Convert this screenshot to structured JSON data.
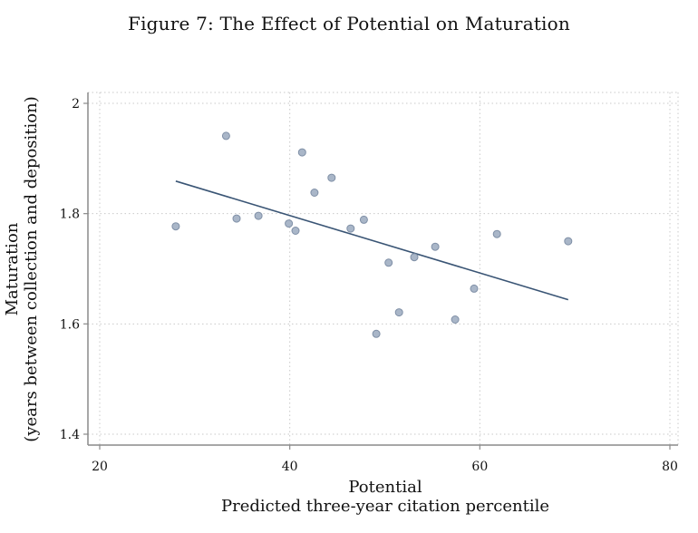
{
  "figure": {
    "title": "Figure 7: The Effect of Potential on Maturation"
  },
  "chart_data": {
    "type": "scatter",
    "title": "Figure 7: The Effect of Potential on Maturation",
    "xlabel": "Potential",
    "xlabel_sub": "Predicted three-year citation percentile",
    "ylabel": "Maturation",
    "ylabel_sub": "(years between collection and deposition)",
    "xlim": [
      20,
      80
    ],
    "ylim": [
      1.4,
      2.0
    ],
    "xticks": [
      20,
      40,
      60,
      80
    ],
    "yticks": [
      1.4,
      1.6,
      1.8,
      2.0
    ],
    "ytick_labels": [
      "1.4",
      "1.6",
      "1.8",
      "2"
    ],
    "grid": true,
    "colors": {
      "point_fill": "#a9b6c8",
      "point_stroke": "#7f8fa6",
      "line": "#3a5575",
      "grid": "#c9c9c9",
      "axis": "#8a8a8a"
    },
    "series": [
      {
        "type": "scatter",
        "x": [
          28.0,
          33.3,
          34.4,
          36.7,
          39.9,
          40.6,
          41.3,
          42.6,
          44.4,
          46.4,
          47.8,
          49.1,
          50.4,
          51.5,
          53.1,
          55.3,
          57.4,
          59.4,
          61.8,
          69.3
        ],
        "y": [
          1.777,
          1.941,
          1.791,
          1.796,
          1.782,
          1.769,
          1.911,
          1.838,
          1.865,
          1.773,
          1.789,
          1.582,
          1.711,
          1.621,
          1.721,
          1.74,
          1.608,
          1.664,
          1.763,
          1.75
        ]
      },
      {
        "type": "line",
        "x": [
          28.0,
          69.3
        ],
        "y": [
          1.859,
          1.644
        ]
      }
    ]
  }
}
